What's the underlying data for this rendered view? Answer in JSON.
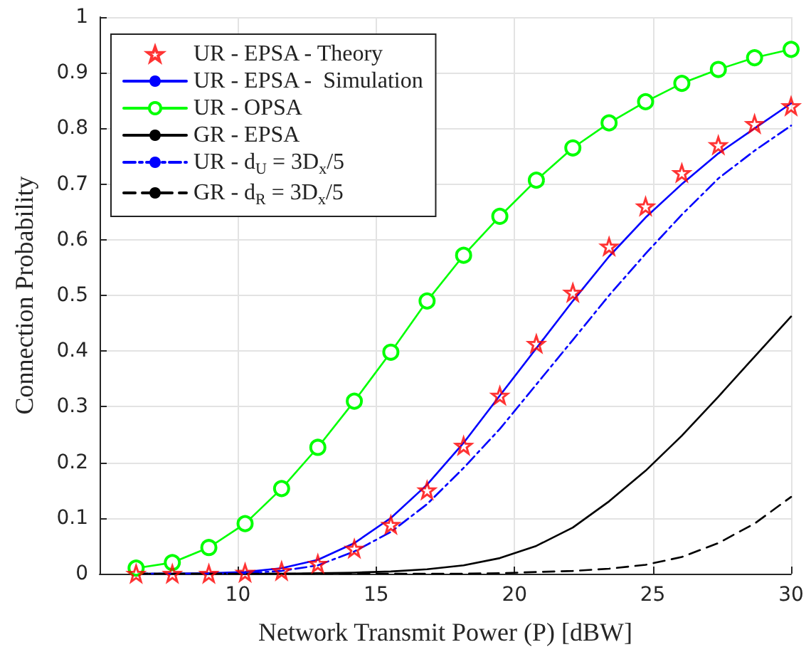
{
  "chart_data": {
    "type": "line",
    "xlabel": "Network Transmit Power (P) [dBW]",
    "ylabel": "Connection Probability",
    "x": [
      6.32,
      7.63,
      8.95,
      10.26,
      11.58,
      12.89,
      14.21,
      15.53,
      16.84,
      18.16,
      19.47,
      20.79,
      22.11,
      23.42,
      24.74,
      26.05,
      27.37,
      28.68,
      30
    ],
    "series": [
      {
        "name": "UR - EPSA - Theory",
        "type": "scatter",
        "marker": "star",
        "color": "#ff0000",
        "values": [
          0,
          0,
          0,
          0.002,
          0.005,
          0.018,
          0.045,
          0.088,
          0.15,
          0.23,
          0.32,
          0.413,
          0.505,
          0.588,
          0.66,
          0.72,
          0.77,
          0.808,
          0.84
        ]
      },
      {
        "name": "UR - EPSA -  Simulation",
        "marker": "none",
        "line_style": "solid",
        "color": "#0000ff",
        "values": [
          0,
          0,
          0.001,
          0.003,
          0.01,
          0.025,
          0.055,
          0.1,
          0.16,
          0.235,
          0.32,
          0.405,
          0.49,
          0.57,
          0.64,
          0.7,
          0.755,
          0.8,
          0.845
        ]
      },
      {
        "name": "UR - OPSA",
        "marker": "circle",
        "line_style": "solid",
        "color": "#00ff00",
        "values": [
          0.01,
          0.02,
          0.047,
          0.09,
          0.153,
          0.227,
          0.31,
          0.398,
          0.49,
          0.572,
          0.642,
          0.707,
          0.765,
          0.81,
          0.848,
          0.881,
          0.906,
          0.927,
          0.942
        ]
      },
      {
        "name": "GR - EPSA",
        "marker": "none",
        "line_style": "solid",
        "color": "#000000",
        "values": [
          0,
          0,
          0,
          0,
          0,
          0.001,
          0.002,
          0.004,
          0.008,
          0.015,
          0.028,
          0.05,
          0.083,
          0.13,
          0.185,
          0.248,
          0.318,
          0.39,
          0.462
        ]
      },
      {
        "name": "UR - d$_{U}$ = 3D$_{x}$/5",
        "marker": "none",
        "line_style": "dashdot",
        "color": "#0000ff",
        "values": [
          0,
          0,
          0,
          0.001,
          0.005,
          0.015,
          0.04,
          0.075,
          0.125,
          0.19,
          0.26,
          0.34,
          0.42,
          0.5,
          0.575,
          0.645,
          0.71,
          0.76,
          0.805
        ]
      },
      {
        "name": "GR - d$_{R}$ = 3D$_{x}$/5",
        "marker": "none",
        "line_style": "dashed",
        "color": "#000000",
        "values": [
          0,
          0,
          0,
          0,
          0,
          0,
          0,
          0,
          0,
          0,
          0.001,
          0.003,
          0.005,
          0.009,
          0.016,
          0.03,
          0.055,
          0.09,
          0.138
        ]
      }
    ],
    "xlim": [
      5,
      30
    ],
    "xticks": [
      10,
      15,
      20,
      25,
      30
    ],
    "ylim": [
      0,
      1
    ],
    "yticks": [
      0,
      0.1,
      0.2,
      0.3,
      0.4,
      0.5,
      0.6,
      0.7,
      0.8,
      0.9,
      1
    ],
    "grid": true,
    "legend": "top left"
  }
}
